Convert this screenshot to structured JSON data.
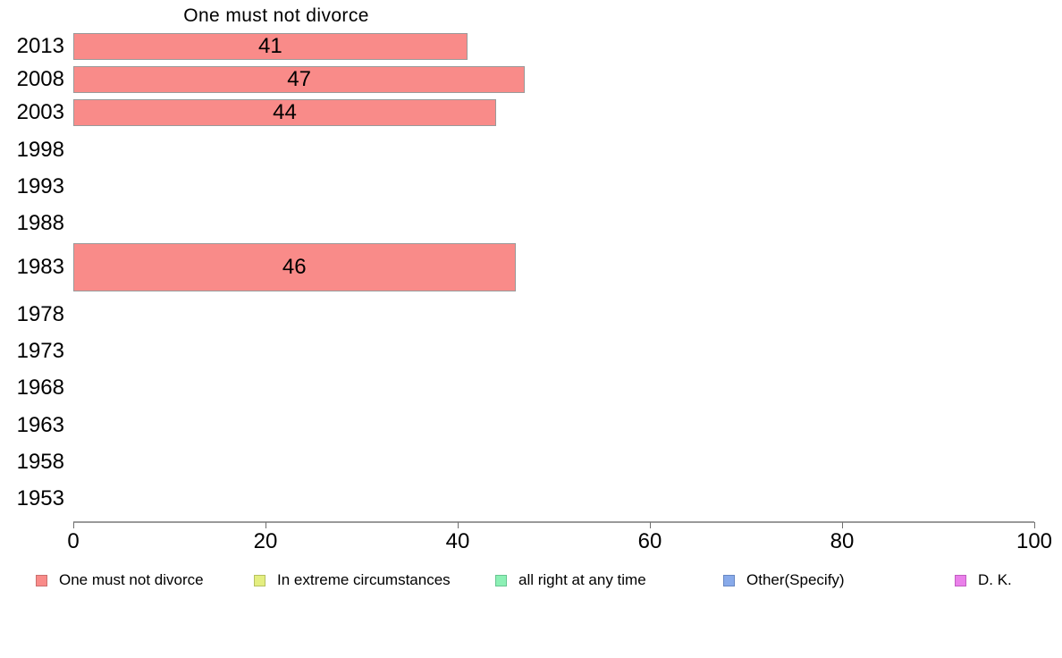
{
  "chart_data": {
    "type": "bar",
    "orientation": "horizontal",
    "title": "One must not divorce",
    "series_name": "One must not divorce",
    "categories": [
      "2013",
      "2008",
      "2003",
      "1998",
      "1993",
      "1988",
      "1983",
      "1978",
      "1973",
      "1968",
      "1963",
      "1958",
      "1953"
    ],
    "values": [
      41,
      47,
      44,
      null,
      null,
      null,
      46,
      null,
      null,
      null,
      null,
      null,
      null
    ],
    "xlabel": "",
    "ylabel": "",
    "xlim": [
      0,
      100
    ],
    "x_ticks": [
      0,
      20,
      40,
      60,
      80,
      100
    ],
    "grid": "off",
    "legend_position": "bottom",
    "bar_color": "#f98b89",
    "bar_border_color": "#9a9a9a",
    "legend": [
      {
        "label": "One must not divorce",
        "color": "#f98b89",
        "border": "#c9706f"
      },
      {
        "label": "In extreme circumstances",
        "color": "#e4ee80",
        "border": "#b5c161"
      },
      {
        "label": "all right at any time",
        "color": "#8cf0b5",
        "border": "#68c491"
      },
      {
        "label": "Other(Specify)",
        "color": "#88aaea",
        "border": "#6787c2"
      },
      {
        "label": "D. K.",
        "color": "#ea80ea",
        "border": "#c05ec0"
      }
    ]
  }
}
